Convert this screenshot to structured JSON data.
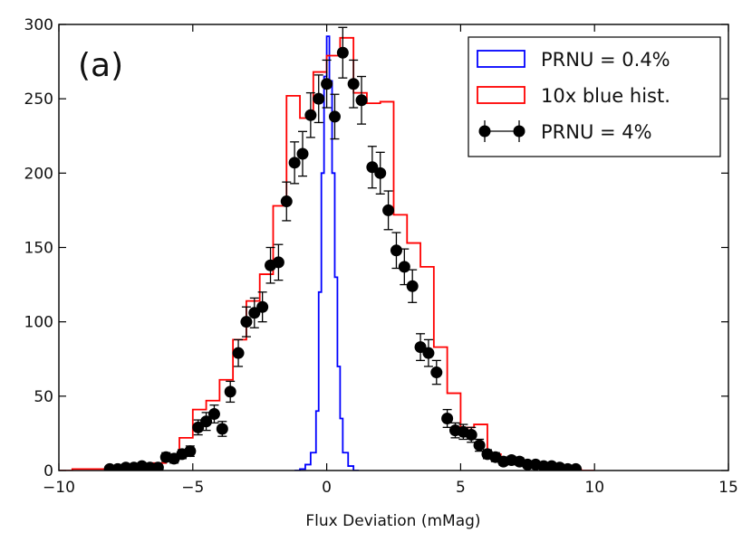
{
  "chart_data": {
    "type": "histogram",
    "panel_label": "(a)",
    "xlabel": "Flux Deviation (mMag)",
    "ylabel": "",
    "xlim": [
      -10,
      15
    ],
    "ylim": [
      0,
      300
    ],
    "x_ticks": [
      -10,
      -5,
      0,
      5,
      10,
      15
    ],
    "x_tick_labels": [
      "−10",
      "−5",
      "0",
      "5",
      "10",
      "15"
    ],
    "y_ticks": [
      0,
      50,
      100,
      150,
      200,
      250,
      300
    ],
    "y_tick_labels": [
      "0",
      "50",
      "100",
      "150",
      "200",
      "250",
      "300"
    ],
    "grid": false,
    "legend": {
      "position": "top-right",
      "entries": [
        {
          "label": "PRNU = 0.4%",
          "style": "step",
          "color": "#0000ff"
        },
        {
          "label": "10x blue hist.",
          "style": "step",
          "color": "#ff0000"
        },
        {
          "label": "PRNU = 4%",
          "style": "errorbar",
          "color": "#000000"
        }
      ]
    },
    "series": [
      {
        "name": "PRNU = 0.4%",
        "type": "step",
        "color": "#0000ff",
        "bins": [
          [
            -1.2,
            -1.0,
            0
          ],
          [
            -1.0,
            -0.8,
            1
          ],
          [
            -0.8,
            -0.6,
            4
          ],
          [
            -0.6,
            -0.4,
            12
          ],
          [
            -0.4,
            -0.3,
            40
          ],
          [
            -0.3,
            -0.2,
            120
          ],
          [
            -0.2,
            -0.1,
            200
          ],
          [
            -0.1,
            0.0,
            265
          ],
          [
            0.0,
            0.1,
            292
          ],
          [
            0.1,
            0.2,
            262
          ],
          [
            0.2,
            0.3,
            200
          ],
          [
            0.3,
            0.4,
            130
          ],
          [
            0.4,
            0.5,
            70
          ],
          [
            0.5,
            0.6,
            35
          ],
          [
            0.6,
            0.8,
            12
          ],
          [
            0.8,
            1.0,
            3
          ],
          [
            1.0,
            1.2,
            0
          ]
        ]
      },
      {
        "name": "10x blue hist.",
        "type": "step",
        "color": "#ff0000",
        "bins": [
          [
            -10,
            -9.5,
            0
          ],
          [
            -9.5,
            -8.5,
            1
          ],
          [
            -8.5,
            -8,
            1
          ],
          [
            -8,
            -7.5,
            2
          ],
          [
            -7.5,
            -7,
            2
          ],
          [
            -7,
            -6.5,
            2
          ],
          [
            -6.5,
            -6,
            5
          ],
          [
            -6,
            -5.5,
            10
          ],
          [
            -5.5,
            -5,
            22
          ],
          [
            -5,
            -4.5,
            41
          ],
          [
            -4.5,
            -4,
            47
          ],
          [
            -4,
            -3.5,
            61
          ],
          [
            -3.5,
            -3,
            88
          ],
          [
            -3,
            -2.5,
            114
          ],
          [
            -2.5,
            -2,
            132
          ],
          [
            -2,
            -1.5,
            178
          ],
          [
            -1.5,
            -1,
            252
          ],
          [
            -1,
            -0.5,
            237
          ],
          [
            -0.5,
            0,
            268
          ],
          [
            0,
            0.5,
            279
          ],
          [
            0.5,
            1,
            291
          ],
          [
            1,
            1.5,
            254
          ],
          [
            1.5,
            2,
            247
          ],
          [
            2,
            2.5,
            248
          ],
          [
            2.5,
            3,
            172
          ],
          [
            3,
            3.5,
            153
          ],
          [
            3.5,
            4,
            137
          ],
          [
            4,
            4.5,
            83
          ],
          [
            4.5,
            5,
            52
          ],
          [
            5,
            5.5,
            29
          ],
          [
            5.5,
            6,
            31
          ],
          [
            6,
            6.5,
            11
          ],
          [
            6.5,
            7,
            7
          ],
          [
            7,
            7.5,
            5
          ],
          [
            7.5,
            8,
            4
          ],
          [
            8,
            8.5,
            3
          ],
          [
            8.5,
            9,
            2
          ],
          [
            9,
            9.5,
            1
          ],
          [
            9.5,
            10,
            0
          ]
        ]
      },
      {
        "name": "PRNU = 4%",
        "type": "errorbar",
        "color": "#000000",
        "points": [
          [
            -8.1,
            1,
            1
          ],
          [
            -7.8,
            1,
            1
          ],
          [
            -7.5,
            2,
            1
          ],
          [
            -7.2,
            2,
            1
          ],
          [
            -6.9,
            3,
            1.5
          ],
          [
            -6.6,
            2,
            1
          ],
          [
            -6.3,
            2,
            1
          ],
          [
            -6.0,
            9,
            3
          ],
          [
            -5.7,
            8,
            3
          ],
          [
            -5.4,
            11,
            3
          ],
          [
            -5.1,
            13,
            3.5
          ],
          [
            -4.8,
            29,
            5
          ],
          [
            -4.5,
            33,
            6
          ],
          [
            -4.2,
            38,
            6
          ],
          [
            -3.9,
            28,
            5
          ],
          [
            -3.6,
            53,
            7
          ],
          [
            -3.3,
            79,
            9
          ],
          [
            -3.0,
            100,
            10
          ],
          [
            -2.7,
            106,
            10
          ],
          [
            -2.4,
            110,
            10
          ],
          [
            -2.1,
            138,
            12
          ],
          [
            -1.8,
            140,
            12
          ],
          [
            -1.5,
            181,
            13
          ],
          [
            -1.2,
            207,
            14
          ],
          [
            -0.9,
            213,
            15
          ],
          [
            -0.6,
            239,
            15
          ],
          [
            -0.3,
            250,
            16
          ],
          [
            0.0,
            260,
            16
          ],
          [
            0.3,
            238,
            15
          ],
          [
            0.6,
            281,
            17
          ],
          [
            1.0,
            260,
            16
          ],
          [
            1.3,
            249,
            16
          ],
          [
            1.7,
            204,
            14
          ],
          [
            2.0,
            200,
            14
          ],
          [
            2.3,
            175,
            13
          ],
          [
            2.6,
            148,
            12
          ],
          [
            2.9,
            137,
            12
          ],
          [
            3.2,
            124,
            11
          ],
          [
            3.5,
            83,
            9
          ],
          [
            3.8,
            79,
            9
          ],
          [
            4.1,
            66,
            8
          ],
          [
            4.5,
            35,
            6
          ],
          [
            4.8,
            27,
            5
          ],
          [
            5.1,
            26,
            5
          ],
          [
            5.4,
            24,
            5
          ],
          [
            5.7,
            17,
            4
          ],
          [
            6.0,
            11,
            3
          ],
          [
            6.3,
            9,
            3
          ],
          [
            6.6,
            6,
            2.5
          ],
          [
            6.9,
            7,
            2.5
          ],
          [
            7.2,
            6,
            2.5
          ],
          [
            7.5,
            4,
            2
          ],
          [
            7.8,
            4,
            2
          ],
          [
            8.1,
            3,
            2
          ],
          [
            8.4,
            3,
            1.5
          ],
          [
            8.7,
            2,
            1
          ],
          [
            9.0,
            1,
            1
          ],
          [
            9.3,
            1,
            1
          ]
        ]
      }
    ]
  }
}
